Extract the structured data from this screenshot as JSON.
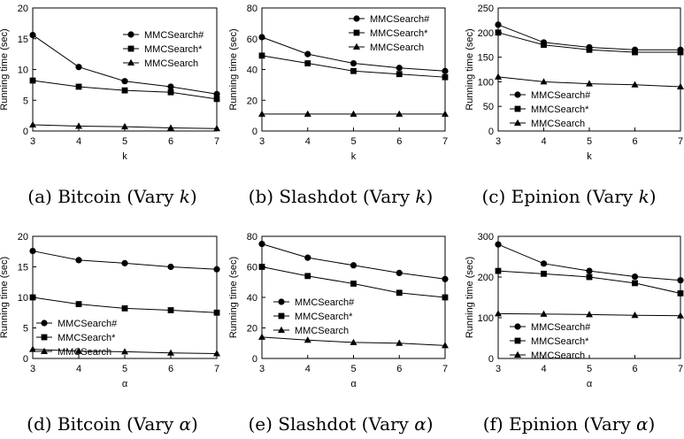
{
  "figure": {
    "charts": [
      {
        "id": "a",
        "caption_prefix": "(a)",
        "caption_dataset": "Bitcoin",
        "caption_text": "(Vary",
        "caption_var": "k",
        "caption_close": ")",
        "xlabel_glyph": "k"
      },
      {
        "id": "b",
        "caption_prefix": "(b)",
        "caption_dataset": "Slashdot",
        "caption_text": "(Vary",
        "caption_var": "k",
        "caption_close": ")",
        "xlabel_glyph": "k"
      },
      {
        "id": "c",
        "caption_prefix": "(c)",
        "caption_dataset": "Epinion",
        "caption_text": "(Vary",
        "caption_var": "k",
        "caption_close": ")",
        "xlabel_glyph": "k"
      },
      {
        "id": "d",
        "caption_prefix": "(d)",
        "caption_dataset": "Bitcoin",
        "caption_text": "(Vary",
        "caption_var": "α",
        "caption_close": ")",
        "xlabel_glyph": "α"
      },
      {
        "id": "e",
        "caption_prefix": "(e)",
        "caption_dataset": "Slashdot",
        "caption_text": "(Vary",
        "caption_var": "α",
        "caption_close": ")",
        "xlabel_glyph": "α"
      },
      {
        "id": "f",
        "caption_prefix": "(f)",
        "caption_dataset": "Epinion",
        "caption_text": "(Vary",
        "caption_var": "α",
        "caption_close": ")",
        "xlabel_glyph": "α"
      }
    ]
  },
  "chart_data": [
    {
      "type": "line",
      "title": "(a) Bitcoin (Vary k)",
      "xlabel": "k",
      "ylabel": "Running time (sec)",
      "x": [
        3,
        4,
        5,
        6,
        7
      ],
      "ylim": [
        0,
        20
      ],
      "yticks": [
        0,
        5,
        10,
        15,
        20
      ],
      "legend_position": "top-right",
      "series": [
        {
          "name": "MMCSearch#",
          "marker": "circle",
          "values": [
            15.6,
            10.4,
            8.1,
            7.2,
            6.0
          ]
        },
        {
          "name": "MMCSearch*",
          "marker": "square",
          "values": [
            8.2,
            7.2,
            6.6,
            6.3,
            5.2
          ]
        },
        {
          "name": "MMCSearch",
          "marker": "triangle",
          "values": [
            1.0,
            0.8,
            0.7,
            0.5,
            0.4
          ]
        }
      ]
    },
    {
      "type": "line",
      "title": "(b) Slashdot (Vary k)",
      "xlabel": "k",
      "ylabel": "Running time (sec)",
      "x": [
        3,
        4,
        5,
        6,
        7
      ],
      "ylim": [
        0,
        80
      ],
      "yticks": [
        0,
        20,
        40,
        60,
        80
      ],
      "legend_position": "top-right",
      "series": [
        {
          "name": "MMCSearch#",
          "marker": "circle",
          "values": [
            61,
            50,
            44,
            41,
            39
          ]
        },
        {
          "name": "MMCSearch*",
          "marker": "square",
          "values": [
            49,
            44,
            39,
            37,
            35
          ]
        },
        {
          "name": "MMCSearch",
          "marker": "triangle",
          "values": [
            11,
            11,
            11,
            11,
            11
          ]
        }
      ]
    },
    {
      "type": "line",
      "title": "(c) Epinion (Vary k)",
      "xlabel": "k",
      "ylabel": "Running time (sec)",
      "x": [
        3,
        4,
        5,
        6,
        7
      ],
      "ylim": [
        0,
        250
      ],
      "yticks": [
        0,
        50,
        100,
        150,
        200,
        250
      ],
      "legend_position": "middle-left",
      "series": [
        {
          "name": "MMCSearch#",
          "marker": "circle",
          "values": [
            216,
            180,
            170,
            165,
            165
          ]
        },
        {
          "name": "MMCSearch*",
          "marker": "square",
          "values": [
            200,
            175,
            165,
            160,
            160
          ]
        },
        {
          "name": "MMCSearch",
          "marker": "triangle",
          "values": [
            110,
            100,
            96,
            94,
            90
          ]
        }
      ]
    },
    {
      "type": "line",
      "title": "(d) Bitcoin (Vary α)",
      "xlabel": "α",
      "ylabel": "Running time (sec)",
      "x": [
        3,
        4,
        5,
        6,
        7
      ],
      "ylim": [
        0,
        20
      ],
      "yticks": [
        0,
        5,
        10,
        15,
        20
      ],
      "legend_position": "bottom-left",
      "series": [
        {
          "name": "MMCSearch#",
          "marker": "circle",
          "values": [
            17.6,
            16.1,
            15.6,
            15.0,
            14.6
          ]
        },
        {
          "name": "MMCSearch*",
          "marker": "square",
          "values": [
            10.0,
            8.9,
            8.2,
            7.9,
            7.5
          ]
        },
        {
          "name": "MMCSearch",
          "marker": "triangle",
          "values": [
            1.5,
            1.2,
            1.1,
            0.9,
            0.8
          ]
        }
      ]
    },
    {
      "type": "line",
      "title": "(e) Slashdot (Vary α)",
      "xlabel": "α",
      "ylabel": "Running time (sec)",
      "x": [
        3,
        4,
        5,
        6,
        7
      ],
      "ylim": [
        0,
        80
      ],
      "yticks": [
        0,
        20,
        40,
        60,
        80
      ],
      "legend_position": "bottom-left",
      "series": [
        {
          "name": "MMCSearch#",
          "marker": "circle",
          "values": [
            75,
            66,
            61,
            56,
            52
          ]
        },
        {
          "name": "MMCSearch*",
          "marker": "square",
          "values": [
            60,
            54,
            49,
            43,
            40
          ]
        },
        {
          "name": "MMCSearch",
          "marker": "triangle",
          "values": [
            14,
            12,
            10.5,
            10,
            8.5
          ]
        }
      ]
    },
    {
      "type": "line",
      "title": "(f) Epinion (Vary α)",
      "xlabel": "α",
      "ylabel": "Running time (sec)",
      "x": [
        3,
        4,
        5,
        6,
        7
      ],
      "ylim": [
        0,
        300
      ],
      "yticks": [
        0,
        100,
        200,
        300
      ],
      "legend_position": "bottom-right",
      "series": [
        {
          "name": "MMCSearch#",
          "marker": "circle",
          "values": [
            280,
            233,
            215,
            201,
            192
          ]
        },
        {
          "name": "MMCSearch*",
          "marker": "square",
          "values": [
            215,
            208,
            200,
            185,
            160
          ]
        },
        {
          "name": "MMCSearch",
          "marker": "triangle",
          "values": [
            110,
            109,
            108,
            106,
            105
          ]
        }
      ]
    }
  ]
}
